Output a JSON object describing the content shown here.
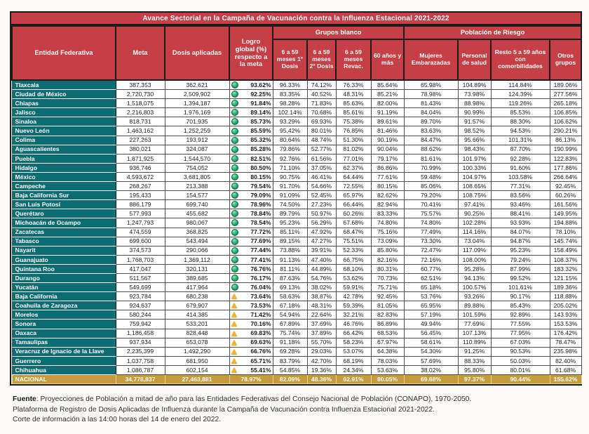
{
  "title": "Avance Sectorial en la Campaña de Vacunación contra la Influenza Estacional 2021-2022",
  "colors": {
    "header_red": "#c63e46",
    "entity_teal": "#0d6b74",
    "national_gold": "#c79b3a",
    "status_green": "#23ab6e",
    "status_amber": "#f0b429"
  },
  "columns": {
    "entidad": "Entidad Federativa",
    "meta": "Meta",
    "dosis": "Dosis aplicadas",
    "logro": "Logro global (%) respecto a la meta",
    "grupos_blanco": "Grupos blanco",
    "poblacion_riesgo": "Población de Riesgo",
    "sub": [
      "6 a 59 meses 1° Dosis",
      "6 a 59 meses 2° Dosis",
      "6 a 59 meses Revac.",
      "60 años y más",
      "Mujeres Embarazadas",
      "Personal de salud",
      "Resto 5 a 59 años con comorbilidades",
      "Otros grupos"
    ]
  },
  "status_legend": {
    "ok": "green-circle",
    "warn": "yellow-triangle"
  },
  "rows": [
    {
      "entidad": "Tlaxcala",
      "meta": "387,353",
      "dosis": "362,621",
      "logro": "93.62%",
      "status": "ok",
      "valores": [
        "96.33%",
        "74.12%",
        "76.33%",
        "85.64%",
        "65.98%",
        "104.89%",
        "114.84%",
        "189.06%"
      ]
    },
    {
      "entidad": "Ciudad de México",
      "meta": "2,720,730",
      "dosis": "2,509,902",
      "logro": "92.25%",
      "status": "ok",
      "valores": [
        "83.35%",
        "40.52%",
        "48.31%",
        "85.21%",
        "78.98%",
        "73.98%",
        "124.39%",
        "277.56%"
      ]
    },
    {
      "entidad": "Chiapas",
      "meta": "1,518,075",
      "dosis": "1,394,187",
      "logro": "91.84%",
      "status": "ok",
      "valores": [
        "98.28%",
        "71.83%",
        "85.63%",
        "82.00%",
        "81.43%",
        "88.98%",
        "119.26%",
        "265.18%"
      ]
    },
    {
      "entidad": "Jalisco",
      "meta": "2,216,803",
      "dosis": "1,976,169",
      "logro": "89.14%",
      "status": "ok",
      "valores": [
        "102.14%",
        "70.68%",
        "85.61%",
        "91.19%",
        "84.04%",
        "90.99%",
        "85.53%",
        "106.85%"
      ]
    },
    {
      "entidad": "Sinaloa",
      "meta": "818,731",
      "dosis": "701,935",
      "logro": "85.73%",
      "status": "ok",
      "valores": [
        "93.29%",
        "69.93%",
        "75.38%",
        "89.61%",
        "89.70%",
        "91.57%",
        "88.30%",
        "106.62%"
      ]
    },
    {
      "entidad": "Nuevo León",
      "meta": "1,463,162",
      "dosis": "1,252,259",
      "logro": "85.59%",
      "status": "ok",
      "valores": [
        "95.42%",
        "80.01%",
        "76.85%",
        "81.46%",
        "83.63%",
        "98.52%",
        "94.53%",
        "290.21%"
      ]
    },
    {
      "entidad": "Colima",
      "meta": "227,263",
      "dosis": "193,912",
      "logro": "85.32%",
      "status": "ok",
      "valores": [
        "80.64%",
        "48.74%",
        "51.30%",
        "90.19%",
        "84.47%",
        "95.66%",
        "101.31%",
        "86.13%"
      ]
    },
    {
      "entidad": "Aguascalientes",
      "meta": "380,021",
      "dosis": "324,087",
      "logro": "85.28%",
      "status": "ok",
      "valores": [
        "79.86%",
        "52.77%",
        "81.02%",
        "90.04%",
        "88.62%",
        "98.43%",
        "87.70%",
        "190.99%"
      ]
    },
    {
      "entidad": "Puebla",
      "meta": "1,871,925",
      "dosis": "1,544,570",
      "logro": "82.51%",
      "status": "ok",
      "valores": [
        "92.76%",
        "61.56%",
        "77.01%",
        "79.17%",
        "81.61%",
        "101.97%",
        "92.28%",
        "122.83%"
      ]
    },
    {
      "entidad": "Hidalgo",
      "meta": "936,746",
      "dosis": "754,052",
      "logro": "80.50%",
      "status": "ok",
      "valores": [
        "71.10%",
        "37.05%",
        "62.37%",
        "86.86%",
        "70.99%",
        "100.33%",
        "91.60%",
        "177.86%"
      ]
    },
    {
      "entidad": "México",
      "meta": "4,593,672",
      "dosis": "3,681,805",
      "logro": "80.15%",
      "status": "ok",
      "valores": [
        "90.75%",
        "46.41%",
        "64.44%",
        "77.61%",
        "59.48%",
        "104.97%",
        "103.58%",
        "266.64%"
      ]
    },
    {
      "entidad": "Campeche",
      "meta": "268,267",
      "dosis": "213,388",
      "logro": "79.54%",
      "status": "ok",
      "valores": [
        "91.70%",
        "54.66%",
        "72.55%",
        "80.15%",
        "85.06%",
        "108.65%",
        "77.31%",
        "92.45%"
      ]
    },
    {
      "entidad": "Baja California Sur",
      "meta": "195,433",
      "dosis": "154,577",
      "logro": "79.09%",
      "status": "ok",
      "valores": [
        "91.09%",
        "52.45%",
        "65.97%",
        "82.62%",
        "79.20%",
        "108.75%",
        "83.56%",
        "60.26%"
      ]
    },
    {
      "entidad": "San Luis Potosí",
      "meta": "886,179",
      "dosis": "699,740",
      "logro": "78.96%",
      "status": "ok",
      "valores": [
        "74.50%",
        "27.23%",
        "66.44%",
        "82.94%",
        "70.41%",
        "97.41%",
        "93.46%",
        "161.56%"
      ]
    },
    {
      "entidad": "Querétaro",
      "meta": "577,993",
      "dosis": "455,682",
      "logro": "78.84%",
      "status": "ok",
      "valores": [
        "89.79%",
        "50.97%",
        "60.26%",
        "83.33%",
        "75.57%",
        "90.25%",
        "88.41%",
        "149.95%"
      ]
    },
    {
      "entidad": "Michoacán de Ocampo",
      "meta": "1,247,793",
      "dosis": "980,067",
      "logro": "78.54%",
      "status": "ok",
      "valores": [
        "95.23%",
        "56.29%",
        "67.68%",
        "74.80%",
        "74.80%",
        "102.28%",
        "93.93%",
        "194.88%"
      ]
    },
    {
      "entidad": "Zacatecas",
      "meta": "474,559",
      "dosis": "368,825",
      "logro": "77.72%",
      "status": "ok",
      "valores": [
        "85.11%",
        "47.92%",
        "68.47%",
        "75.16%",
        "77.49%",
        "114.16%",
        "84.07%",
        "78.10%"
      ]
    },
    {
      "entidad": "Tabasco",
      "meta": "699,600",
      "dosis": "543,494",
      "logro": "77.69%",
      "status": "ok",
      "valores": [
        "89.15%",
        "47.27%",
        "75.51%",
        "73.09%",
        "73.30%",
        "73.04%",
        "94.87%",
        "145.74%"
      ]
    },
    {
      "entidad": "Nayarit",
      "meta": "374,573",
      "dosis": "290,066",
      "logro": "77.44%",
      "status": "ok",
      "valores": [
        "73.88%",
        "39.91%",
        "52.33%",
        "85.80%",
        "72.47%",
        "117.09%",
        "95.23%",
        "158.49%"
      ]
    },
    {
      "entidad": "Guanajuato",
      "meta": "1,768,703",
      "dosis": "1,369,112",
      "logro": "77.41%",
      "status": "ok",
      "valores": [
        "91.13%",
        "47.40%",
        "66.75%",
        "82.16%",
        "72.16%",
        "108.00%",
        "79.24%",
        "108.37%"
      ]
    },
    {
      "entidad": "Quintana Roo",
      "meta": "417,047",
      "dosis": "320,131",
      "logro": "76.76%",
      "status": "ok",
      "valores": [
        "81.11%",
        "44.89%",
        "68.10%",
        "80.31%",
        "60.77%",
        "95.28%",
        "87.99%",
        "183.32%"
      ]
    },
    {
      "entidad": "Durango",
      "meta": "511,567",
      "dosis": "389,685",
      "logro": "76.17%",
      "status": "ok",
      "valores": [
        "87.63%",
        "54.76%",
        "53.62%",
        "70.73%",
        "62.51%",
        "94.13%",
        "99.52%",
        "121.15%"
      ]
    },
    {
      "entidad": "Yucatán",
      "meta": "549,699",
      "dosis": "417,964",
      "logro": "76.04%",
      "status": "ok",
      "valores": [
        "69.13%",
        "38.02%",
        "59.91%",
        "75.71%",
        "65.18%",
        "100.57%",
        "101.61%",
        "189.36%"
      ]
    },
    {
      "entidad": "Baja California",
      "meta": "923,784",
      "dosis": "680,238",
      "logro": "73.64%",
      "status": "warn",
      "valores": [
        "58.63%",
        "38.87%",
        "42.78%",
        "92.45%",
        "53.76%",
        "93.26%",
        "90.17%",
        "118.88%"
      ]
    },
    {
      "entidad": "Coahuila de Zaragoza",
      "meta": "924,637",
      "dosis": "679,907",
      "logro": "73.53%",
      "status": "warn",
      "valores": [
        "67.18%",
        "48.31%",
        "59.39%",
        "81.05%",
        "65.95%",
        "89.88%",
        "85.43%",
        "205.02%"
      ]
    },
    {
      "entidad": "Morelos",
      "meta": "580,244",
      "dosis": "414,385",
      "logro": "71.42%",
      "status": "warn",
      "valores": [
        "54.94%",
        "22.64%",
        "32.21%",
        "82.83%",
        "57.19%",
        "101.59%",
        "92.89%",
        "143.93%"
      ]
    },
    {
      "entidad": "Sonora",
      "meta": "759,942",
      "dosis": "533,201",
      "logro": "70.16%",
      "status": "warn",
      "valores": [
        "67.89%",
        "37.69%",
        "46.76%",
        "86.89%",
        "49.94%",
        "77.69%",
        "77.55%",
        "153.53%"
      ]
    },
    {
      "entidad": "Oaxaca",
      "meta": "1,186,458",
      "dosis": "828,448",
      "logro": "69.83%",
      "status": "warn",
      "valores": [
        "75.74%",
        "37.89%",
        "66.42%",
        "68.53%",
        "56.45%",
        "107.13%",
        "77.95%",
        "176.42%"
      ]
    },
    {
      "entidad": "Tamaulipas",
      "meta": "937,934",
      "dosis": "653,078",
      "logro": "69.63%",
      "status": "warn",
      "valores": [
        "91.18%",
        "55.70%",
        "58.23%",
        "67.97%",
        "58.61%",
        "110.89%",
        "67.03%",
        "78.47%"
      ]
    },
    {
      "entidad": "Veracruz de Ignacio de la Llave",
      "meta": "2,235,399",
      "dosis": "1,492,290",
      "logro": "66.76%",
      "status": "warn",
      "valores": [
        "69.28%",
        "29.03%",
        "53.07%",
        "64.38%",
        "54.30%",
        "91.25%",
        "90.53%",
        "235.98%"
      ]
    },
    {
      "entidad": "Guerrero",
      "meta": "1,037,758",
      "dosis": "681,950",
      "logro": "65.71%",
      "status": "warn",
      "valores": [
        "83.79%",
        "42.70%",
        "68.19%",
        "78.03%",
        "57.69%",
        "88.33%",
        "50.03%",
        "82.40%"
      ]
    },
    {
      "entidad": "Chihuahua",
      "meta": "1,086,787",
      "dosis": "602,154",
      "logro": "55.41%",
      "status": "warn",
      "valores": [
        "54.85%",
        "19.36%",
        "24.34%",
        "53.63%",
        "38.02%",
        "95.80%",
        "80.01%",
        "61.68%"
      ]
    }
  ],
  "national": {
    "entidad": "NACIONAL",
    "meta": "34,778,837",
    "dosis": "27,463,881",
    "logro": "78.97%",
    "status": "none",
    "valores": [
      "82.09%",
      "48.36%",
      "62.91%",
      "80.05%",
      "69.68%",
      "97.37%",
      "90.44%",
      "155.62%"
    ]
  },
  "footer": {
    "fuente_label": "Fuente",
    "line1_rest": ": Proyecciones de Población a mitad de año para las Entidades Federativas del Consejo Nacional de Población (CONAPO), 1970-2050.",
    "line2": "Plataforma de Registro de Dosis Aplicadas de Influenza durante la Campaña de Vacunación contra Influenza Estacional 2021-2022.",
    "line3": "Corte de información a las 14:00 horas del 14 de enero del 2022."
  }
}
